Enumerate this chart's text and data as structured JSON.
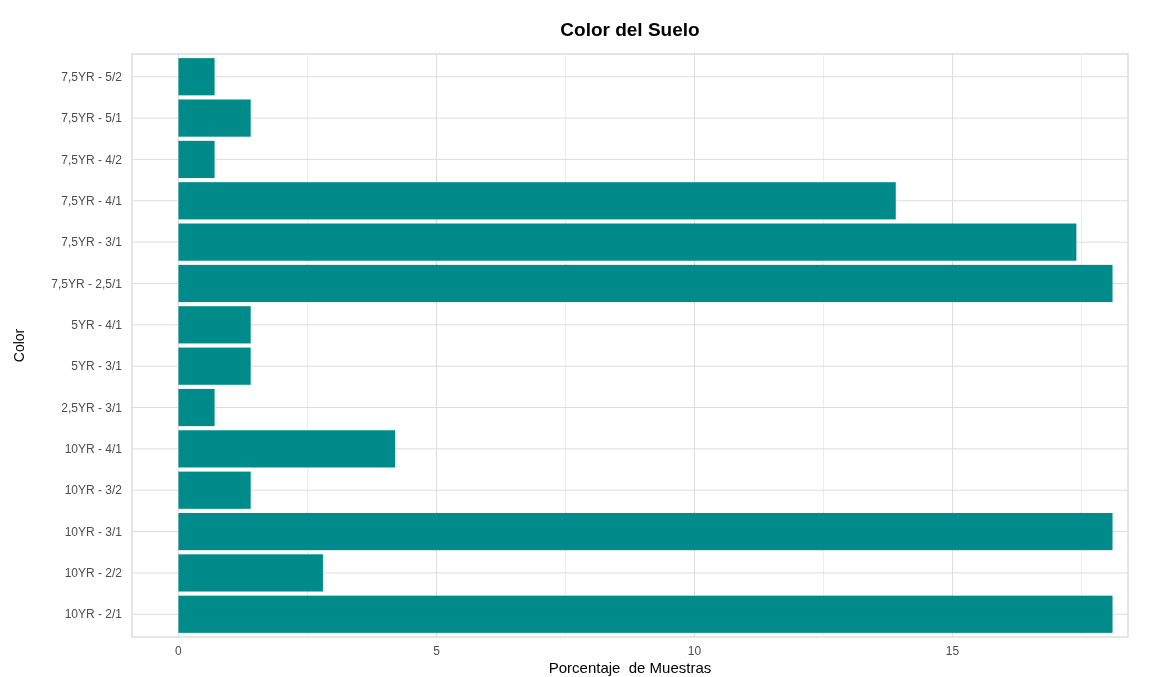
{
  "chart_data": {
    "type": "bar",
    "orientation": "horizontal",
    "title": "Color del Suelo",
    "xlabel": "Porcentaje  de Muestras",
    "ylabel": "Color",
    "categories": [
      "7,5YR - 5/2",
      "7,5YR - 5/1",
      "7,5YR - 4/2",
      "7,5YR - 4/1",
      "7,5YR - 3/1",
      "7,5YR - 2,5/1",
      "5YR - 4/1",
      "5YR - 3/1",
      "2,5YR - 3/1",
      "10YR - 4/1",
      "10YR - 3/2",
      "10YR - 3/1",
      "10YR - 2/2",
      "10YR - 2/1"
    ],
    "values": [
      0.7,
      1.4,
      0.7,
      13.9,
      17.4,
      18.1,
      1.4,
      1.4,
      0.7,
      4.2,
      1.4,
      18.1,
      2.8,
      18.1
    ],
    "color": "#008b8b",
    "xlim": [
      -0.9,
      18.4
    ],
    "xticks": [
      0,
      {
        "value": 2.5,
        "label": null
      },
      5,
      {
        "value": 7.5,
        "label": null
      },
      10,
      {
        "value": 12.5,
        "label": null
      },
      15,
      {
        "value": 17.5,
        "label": null
      }
    ],
    "grid": true
  }
}
